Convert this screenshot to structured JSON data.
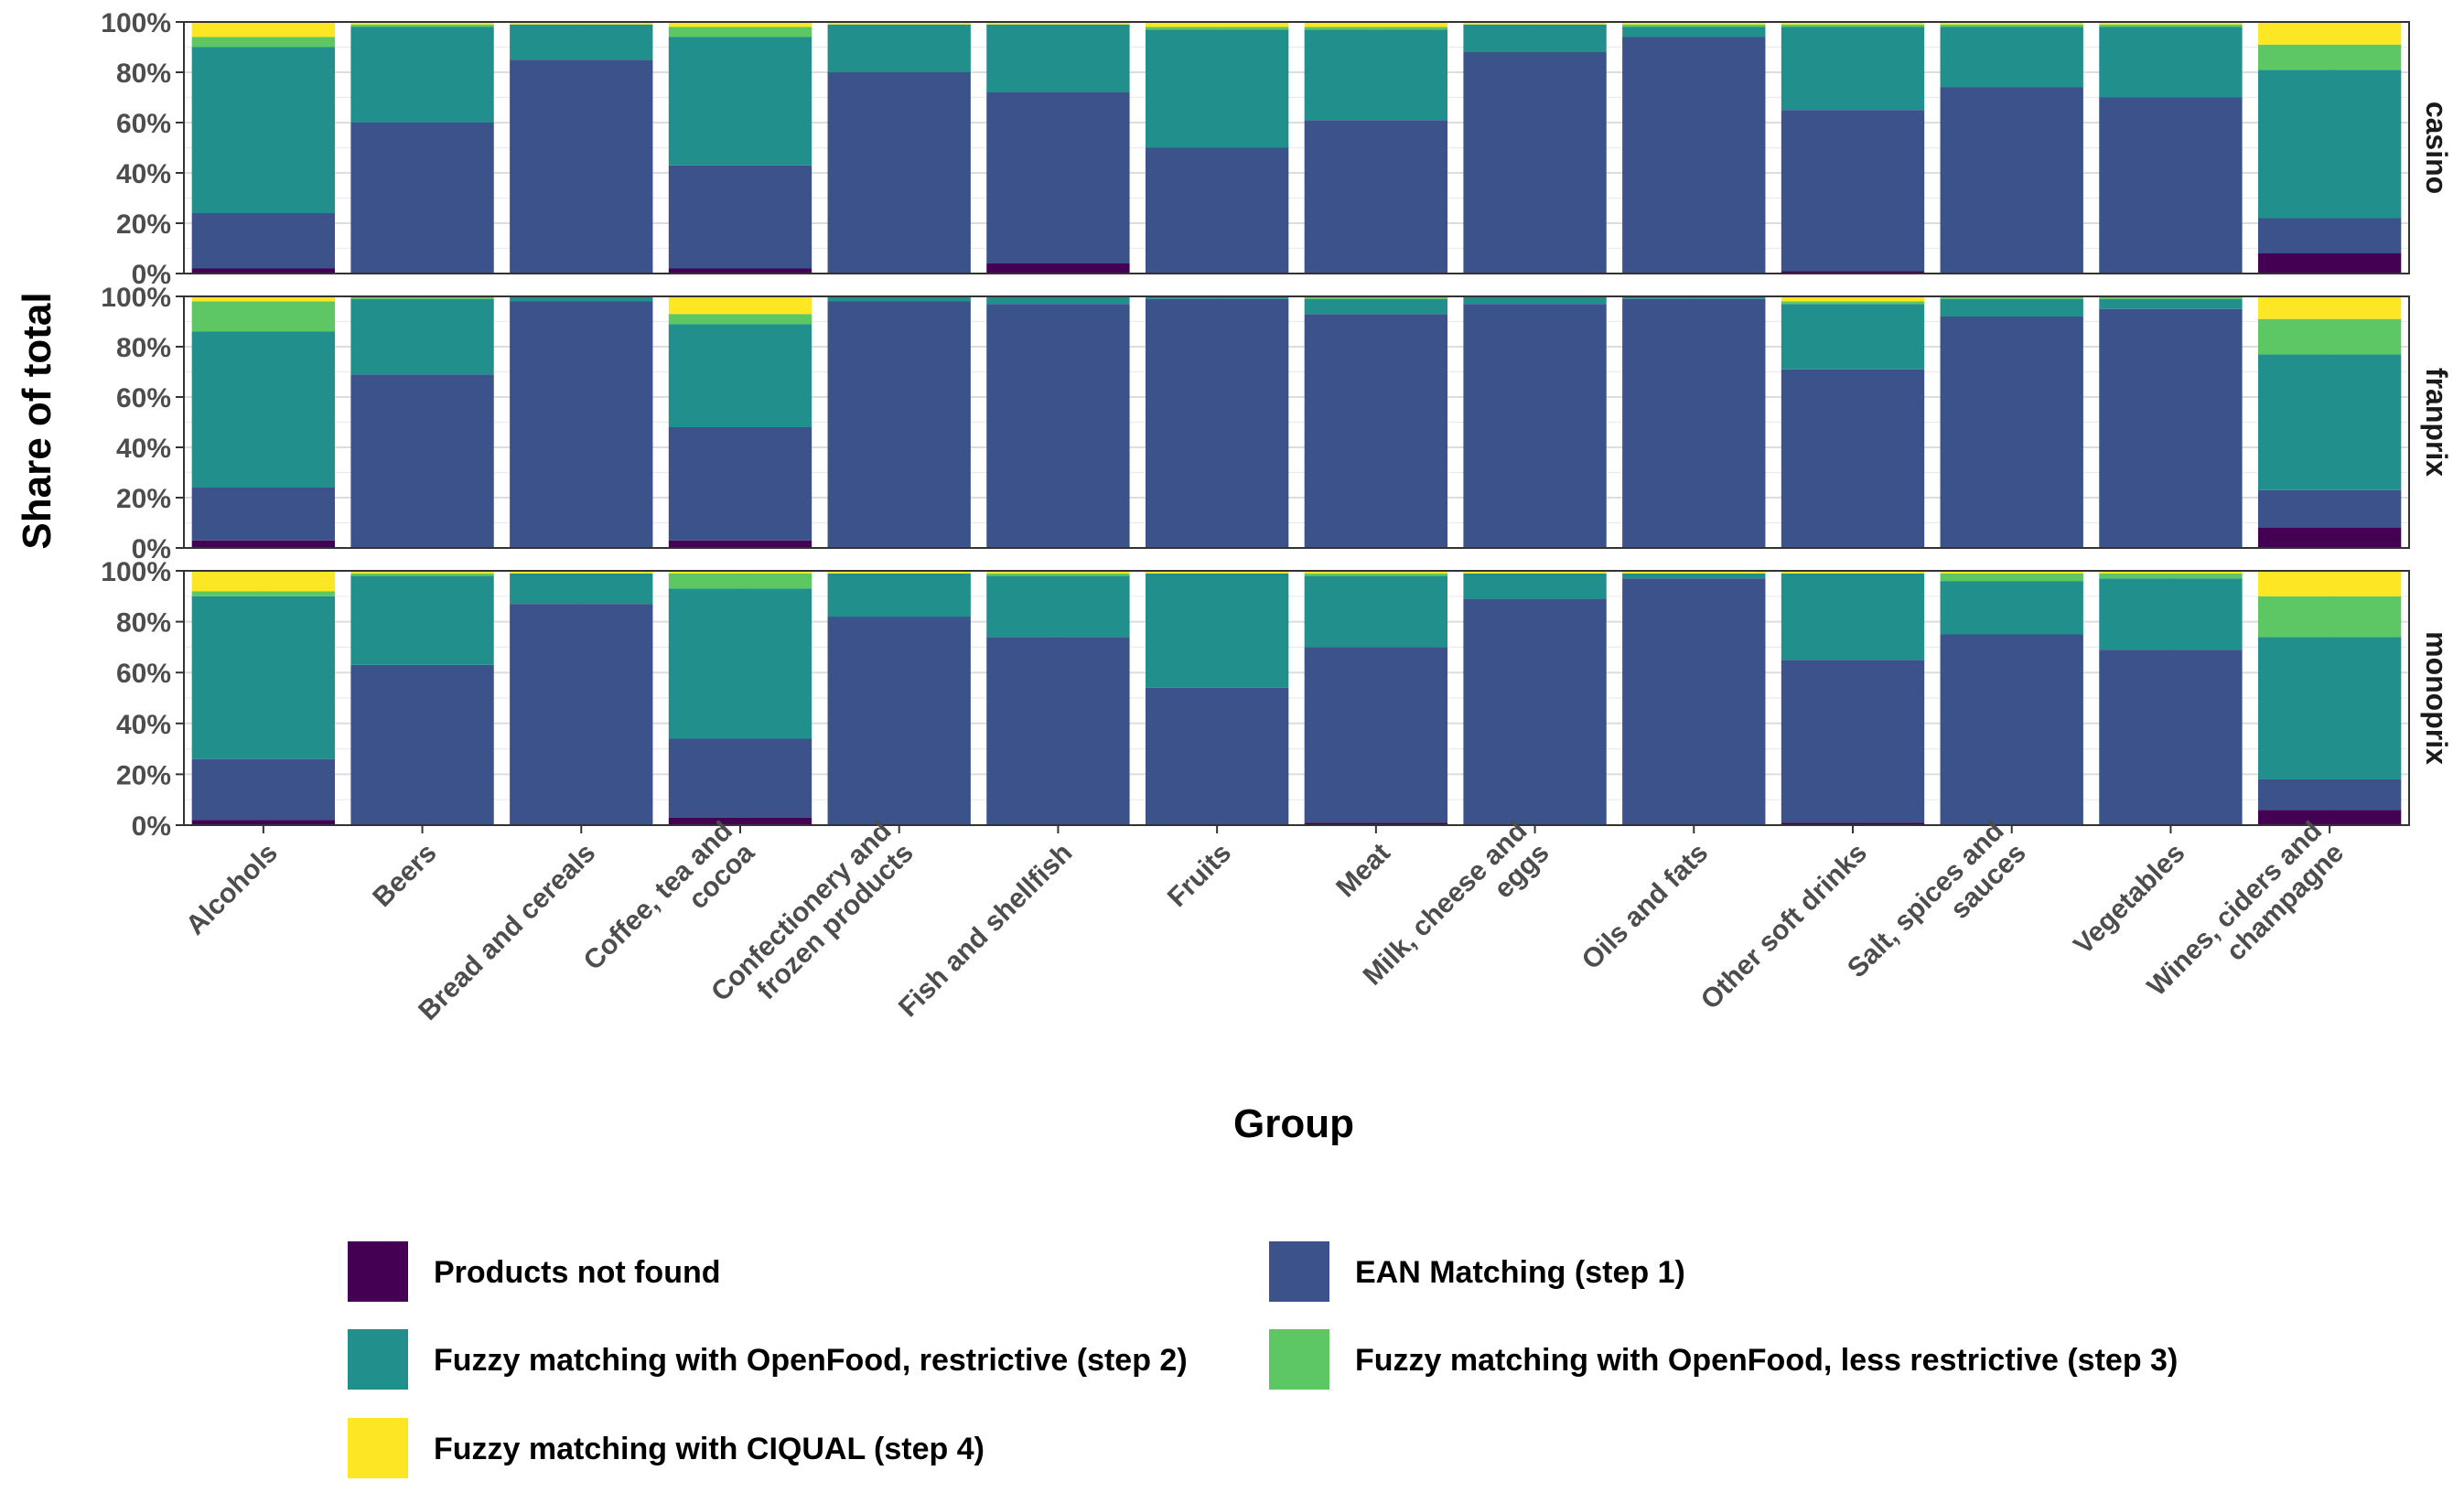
{
  "chart_data": {
    "type": "bar",
    "stacked": true,
    "normalized": true,
    "xlabel": "Group",
    "ylabel": "Share of total",
    "ylim": [
      0,
      100
    ],
    "yticks": [
      "0%",
      "20%",
      "40%",
      "60%",
      "80%",
      "100%"
    ],
    "grid": true,
    "legend_position": "bottom",
    "categories": [
      "Alcohols",
      "Beers",
      "Bread and cereals",
      "Coffee, tea and cocoa",
      "Confectionery and frozen products",
      "Fish and shellfish",
      "Fruits",
      "Meat",
      "Milk, cheese and eggs",
      "Oils and fats",
      "Other soft drinks",
      "Salt, spices and sauces",
      "Vegetables",
      "Wines, ciders and champagne"
    ],
    "category_lines": [
      [
        "Alcohols"
      ],
      [
        "Beers"
      ],
      [
        "Bread and cereals"
      ],
      [
        "Coffee, tea and",
        "cocoa"
      ],
      [
        "Confectionery and",
        "frozen products"
      ],
      [
        "Fish and shellfish"
      ],
      [
        "Fruits"
      ],
      [
        "Meat"
      ],
      [
        "Milk, cheese and",
        "eggs"
      ],
      [
        "Oils and fats"
      ],
      [
        "Other soft drinks"
      ],
      [
        "Salt, spices and",
        "sauces"
      ],
      [
        "Vegetables"
      ],
      [
        "Wines, ciders and",
        "champagne"
      ]
    ],
    "legend": [
      {
        "name": "Products not found",
        "color": "#440154"
      },
      {
        "name": "EAN Matching (step 1)",
        "color": "#3b528b"
      },
      {
        "name": "Fuzzy matching with OpenFood, restrictive (step 2)",
        "color": "#21908c"
      },
      {
        "name": "Fuzzy matching with OpenFood, less restrictive (step 3)",
        "color": "#5dc863"
      },
      {
        "name": "Fuzzy matching with CIQUAL (step 4)",
        "color": "#fde725"
      }
    ],
    "facets": [
      {
        "name": "casino",
        "series": [
          {
            "name": "Products not found",
            "values": [
              2,
              0,
              0,
              2,
              0,
              4,
              0,
              0,
              0,
              0,
              1,
              0,
              0,
              8
            ]
          },
          {
            "name": "EAN Matching (step 1)",
            "values": [
              22,
              60,
              85,
              41,
              80,
              68,
              50,
              61,
              88,
              94,
              64,
              74,
              70,
              14
            ]
          },
          {
            "name": "Fuzzy matching with OpenFood, restrictive (step 2)",
            "values": [
              66,
              38,
              14,
              51,
              19,
              27,
              47,
              36,
              11,
              4,
              33,
              24,
              28,
              59
            ]
          },
          {
            "name": "Fuzzy matching with OpenFood, less restrictive (step 3)",
            "values": [
              4,
              1,
              0,
              4,
              0,
              0,
              1,
              1,
              0,
              1,
              1,
              1,
              1,
              10
            ]
          },
          {
            "name": "Fuzzy matching with CIQUAL (step 4)",
            "values": [
              6,
              1,
              1,
              2,
              1,
              1,
              2,
              2,
              1,
              1,
              1,
              1,
              1,
              9
            ]
          }
        ]
      },
      {
        "name": "franprix",
        "series": [
          {
            "name": "Products not found",
            "values": [
              3,
              0,
              0,
              3,
              0,
              0,
              0,
              0,
              0,
              0,
              0,
              0,
              0,
              8
            ]
          },
          {
            "name": "EAN Matching (step 1)",
            "values": [
              21,
              69,
              98,
              45,
              98,
              97,
              99,
              93,
              97,
              99,
              71,
              92,
              95,
              15
            ]
          },
          {
            "name": "Fuzzy matching with OpenFood, restrictive (step 2)",
            "values": [
              62,
              30,
              2,
              41,
              2,
              3,
              1,
              6,
              3,
              1,
              26,
              7,
              4,
              54
            ]
          },
          {
            "name": "Fuzzy matching with OpenFood, less restrictive (step 3)",
            "values": [
              12,
              1,
              0,
              4,
              0,
              0,
              0,
              1,
              0,
              0,
              1,
              1,
              1,
              14
            ]
          },
          {
            "name": "Fuzzy matching with CIQUAL (step 4)",
            "values": [
              2,
              0,
              0,
              7,
              0,
              0,
              0,
              0,
              0,
              0,
              2,
              0,
              0,
              9
            ]
          }
        ]
      },
      {
        "name": "monoprix",
        "series": [
          {
            "name": "Products not found",
            "values": [
              2,
              0,
              0,
              3,
              0,
              0,
              0,
              1,
              0,
              0,
              1,
              0,
              0,
              6
            ]
          },
          {
            "name": "EAN Matching (step 1)",
            "values": [
              24,
              63,
              87,
              31,
              82,
              74,
              54,
              69,
              89,
              97,
              64,
              75,
              69,
              12
            ]
          },
          {
            "name": "Fuzzy matching with OpenFood, restrictive (step 2)",
            "values": [
              64,
              35,
              12,
              59,
              17,
              24,
              45,
              28,
              10,
              2,
              34,
              21,
              28,
              56
            ]
          },
          {
            "name": "Fuzzy matching with OpenFood, less restrictive (step 3)",
            "values": [
              2,
              1,
              0,
              6,
              0,
              1,
              0,
              1,
              0,
              0,
              0,
              3,
              2,
              16
            ]
          },
          {
            "name": "Fuzzy matching with CIQUAL (step 4)",
            "values": [
              8,
              1,
              1,
              1,
              1,
              1,
              1,
              1,
              1,
              1,
              1,
              1,
              1,
              10
            ]
          }
        ]
      }
    ]
  }
}
